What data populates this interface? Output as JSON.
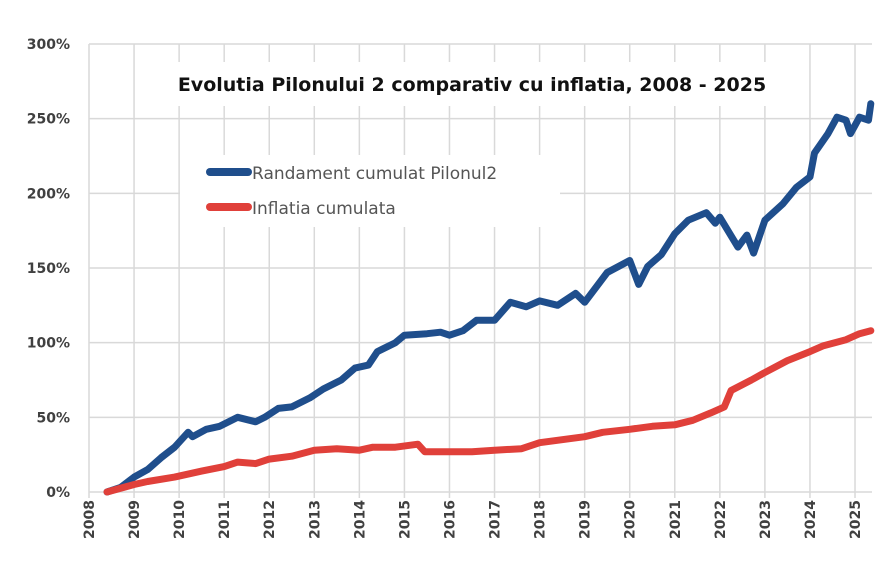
{
  "chart_data": {
    "type": "line",
    "title": "Evolutia Pilonului 2 comparativ cu inflatia, 2008 - 2025",
    "xlabel": "",
    "ylabel": "",
    "xlim": [
      2008,
      2025.35
    ],
    "ylim": [
      0,
      300
    ],
    "x_ticks": [
      "2008",
      "2009",
      "2010",
      "2011",
      "2012",
      "2013",
      "2014",
      "2015",
      "2016",
      "2017",
      "2018",
      "2019",
      "2020",
      "2021",
      "2022",
      "2023",
      "2024",
      "2025"
    ],
    "y_ticks": [
      "0%",
      "50%",
      "100%",
      "150%",
      "200%",
      "250%",
      "300%"
    ],
    "grid": true,
    "legend_position": "top-left",
    "series": [
      {
        "name": "Randament cumulat Pilonul2",
        "color": "#1f4e8c",
        "points": [
          [
            2008.4,
            0
          ],
          [
            2008.7,
            3
          ],
          [
            2009.0,
            10
          ],
          [
            2009.3,
            15
          ],
          [
            2009.6,
            23
          ],
          [
            2009.9,
            30
          ],
          [
            2010.2,
            40
          ],
          [
            2010.3,
            37
          ],
          [
            2010.6,
            42
          ],
          [
            2010.9,
            44
          ],
          [
            2011.3,
            50
          ],
          [
            2011.7,
            47
          ],
          [
            2011.9,
            50
          ],
          [
            2012.2,
            56
          ],
          [
            2012.5,
            57
          ],
          [
            2012.9,
            63
          ],
          [
            2013.2,
            69
          ],
          [
            2013.6,
            75
          ],
          [
            2013.9,
            83
          ],
          [
            2014.2,
            85
          ],
          [
            2014.4,
            94
          ],
          [
            2014.8,
            100
          ],
          [
            2015.0,
            105
          ],
          [
            2015.5,
            106
          ],
          [
            2015.8,
            107
          ],
          [
            2016.0,
            105
          ],
          [
            2016.3,
            108
          ],
          [
            2016.6,
            115
          ],
          [
            2017.0,
            115
          ],
          [
            2017.35,
            127
          ],
          [
            2017.7,
            124
          ],
          [
            2018.0,
            128
          ],
          [
            2018.4,
            125
          ],
          [
            2018.8,
            133
          ],
          [
            2019.0,
            127
          ],
          [
            2019.5,
            147
          ],
          [
            2020.0,
            155
          ],
          [
            2020.2,
            139
          ],
          [
            2020.4,
            151
          ],
          [
            2020.7,
            159
          ],
          [
            2021.0,
            173
          ],
          [
            2021.3,
            182
          ],
          [
            2021.7,
            187
          ],
          [
            2021.9,
            180
          ],
          [
            2022.0,
            184
          ],
          [
            2022.4,
            164
          ],
          [
            2022.6,
            172
          ],
          [
            2022.75,
            160
          ],
          [
            2023.0,
            182
          ],
          [
            2023.4,
            193
          ],
          [
            2023.7,
            204
          ],
          [
            2024.0,
            211
          ],
          [
            2024.1,
            227
          ],
          [
            2024.4,
            240
          ],
          [
            2024.6,
            251
          ],
          [
            2024.8,
            249
          ],
          [
            2024.9,
            240
          ],
          [
            2025.1,
            251
          ],
          [
            2025.3,
            249
          ],
          [
            2025.35,
            260
          ]
        ]
      },
      {
        "name": "Inflatia cumulata",
        "color": "#e0403a",
        "points": [
          [
            2008.4,
            0
          ],
          [
            2009.0,
            5
          ],
          [
            2009.3,
            7
          ],
          [
            2009.9,
            10
          ],
          [
            2010.5,
            14
          ],
          [
            2011.0,
            17
          ],
          [
            2011.3,
            20
          ],
          [
            2011.7,
            19
          ],
          [
            2012.0,
            22
          ],
          [
            2012.5,
            24
          ],
          [
            2013.0,
            28
          ],
          [
            2013.5,
            29
          ],
          [
            2014.0,
            28
          ],
          [
            2014.3,
            30
          ],
          [
            2014.8,
            30
          ],
          [
            2015.3,
            32
          ],
          [
            2015.45,
            27
          ],
          [
            2016.0,
            27
          ],
          [
            2016.5,
            27
          ],
          [
            2017.0,
            28
          ],
          [
            2017.6,
            29
          ],
          [
            2018.0,
            33
          ],
          [
            2018.5,
            35
          ],
          [
            2019.0,
            37
          ],
          [
            2019.4,
            40
          ],
          [
            2020.0,
            42
          ],
          [
            2020.5,
            44
          ],
          [
            2021.0,
            45
          ],
          [
            2021.4,
            48
          ],
          [
            2021.8,
            53
          ],
          [
            2022.1,
            57
          ],
          [
            2022.25,
            68
          ],
          [
            2022.7,
            75
          ],
          [
            2023.0,
            80
          ],
          [
            2023.5,
            88
          ],
          [
            2024.0,
            94
          ],
          [
            2024.3,
            98
          ],
          [
            2024.8,
            102
          ],
          [
            2025.1,
            106
          ],
          [
            2025.35,
            108
          ]
        ]
      }
    ]
  }
}
